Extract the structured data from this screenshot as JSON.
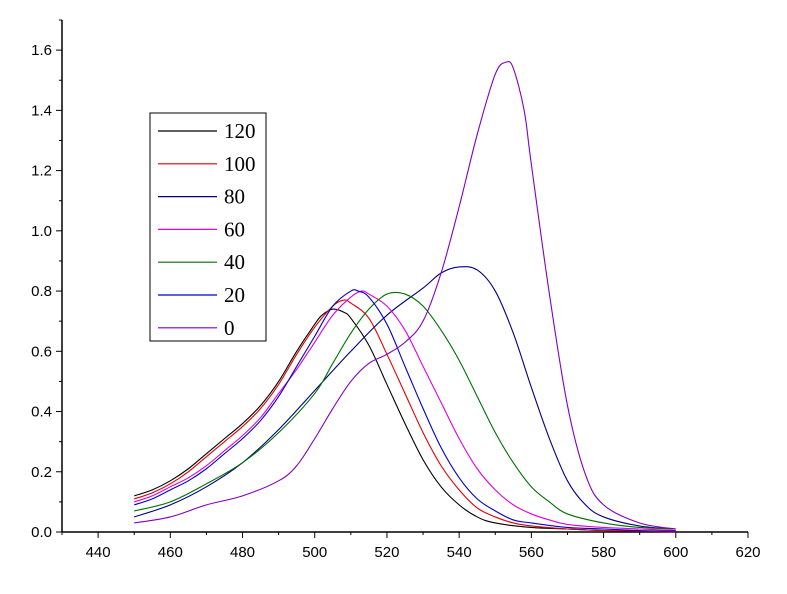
{
  "chart_data": {
    "type": "line",
    "title": "",
    "xlabel": "",
    "ylabel": "",
    "xlim": [
      430,
      620
    ],
    "ylim": [
      0,
      1.7
    ],
    "xticks": [
      440,
      460,
      480,
      500,
      520,
      540,
      560,
      580,
      600,
      620
    ],
    "xtick_labels": [
      "440",
      "460",
      "480",
      "500",
      "520",
      "540",
      "560",
      "580",
      "600",
      "620"
    ],
    "yticks": [
      0,
      0.2,
      0.4,
      0.6,
      0.8,
      1.0,
      1.2,
      1.4,
      1.6
    ],
    "ytick_labels": [
      "0.0",
      "0.2",
      "0.4",
      "0.6",
      "0.8",
      "1.0",
      "1.2",
      "1.4",
      "1.6"
    ],
    "grid": false,
    "legend_position": "upper-left",
    "series": [
      {
        "name": "120",
        "color": "#000000",
        "x": [
          450,
          455,
          460,
          465,
          470,
          475,
          480,
          485,
          490,
          495,
          500,
          502,
          505,
          508,
          510,
          515,
          520,
          525,
          530,
          535,
          540,
          545,
          550,
          560,
          570,
          580,
          590,
          600
        ],
        "y": [
          0.12,
          0.14,
          0.17,
          0.21,
          0.26,
          0.31,
          0.36,
          0.42,
          0.5,
          0.6,
          0.69,
          0.72,
          0.74,
          0.73,
          0.71,
          0.62,
          0.49,
          0.36,
          0.24,
          0.15,
          0.09,
          0.05,
          0.03,
          0.015,
          0.01,
          0.005,
          0.003,
          0.0
        ]
      },
      {
        "name": "100",
        "color": "#e00000",
        "x": [
          450,
          455,
          460,
          465,
          470,
          475,
          480,
          485,
          490,
          495,
          500,
          505,
          508,
          510,
          515,
          520,
          525,
          530,
          535,
          540,
          545,
          550,
          555,
          560,
          570,
          580,
          590,
          600
        ],
        "y": [
          0.11,
          0.13,
          0.16,
          0.2,
          0.25,
          0.3,
          0.35,
          0.41,
          0.49,
          0.59,
          0.68,
          0.75,
          0.77,
          0.76,
          0.71,
          0.59,
          0.46,
          0.33,
          0.22,
          0.14,
          0.08,
          0.05,
          0.03,
          0.02,
          0.01,
          0.005,
          0.003,
          0.0
        ]
      },
      {
        "name": "80",
        "color": "#000080",
        "x": [
          450,
          460,
          470,
          480,
          490,
          500,
          510,
          520,
          530,
          535,
          540,
          545,
          550,
          555,
          560,
          565,
          570,
          575,
          580,
          590,
          600
        ],
        "y": [
          0.05,
          0.09,
          0.15,
          0.23,
          0.34,
          0.47,
          0.6,
          0.72,
          0.81,
          0.86,
          0.88,
          0.87,
          0.8,
          0.66,
          0.48,
          0.31,
          0.17,
          0.09,
          0.05,
          0.02,
          0.01
        ]
      },
      {
        "name": "60",
        "color": "#e000e0",
        "x": [
          450,
          455,
          460,
          465,
          470,
          475,
          480,
          485,
          490,
          495,
          500,
          505,
          510,
          513,
          515,
          520,
          525,
          530,
          535,
          540,
          545,
          550,
          555,
          560,
          565,
          570,
          580,
          590,
          600
        ],
        "y": [
          0.1,
          0.12,
          0.15,
          0.18,
          0.22,
          0.27,
          0.32,
          0.38,
          0.46,
          0.54,
          0.63,
          0.72,
          0.78,
          0.8,
          0.79,
          0.75,
          0.67,
          0.55,
          0.43,
          0.31,
          0.21,
          0.14,
          0.09,
          0.06,
          0.04,
          0.025,
          0.015,
          0.01,
          0.005
        ]
      },
      {
        "name": "40",
        "color": "#007000",
        "x": [
          450,
          460,
          470,
          480,
          490,
          500,
          505,
          510,
          515,
          520,
          525,
          530,
          535,
          540,
          545,
          550,
          555,
          560,
          565,
          570,
          580,
          590,
          600
        ],
        "y": [
          0.07,
          0.1,
          0.16,
          0.23,
          0.33,
          0.46,
          0.56,
          0.66,
          0.74,
          0.79,
          0.79,
          0.75,
          0.67,
          0.57,
          0.45,
          0.33,
          0.23,
          0.15,
          0.1,
          0.06,
          0.03,
          0.015,
          0.01
        ]
      },
      {
        "name": "20",
        "color": "#0000d0",
        "x": [
          450,
          455,
          460,
          465,
          470,
          475,
          480,
          485,
          490,
          495,
          500,
          505,
          510,
          512,
          515,
          520,
          525,
          530,
          535,
          540,
          545,
          550,
          555,
          560,
          570,
          580,
          590,
          600
        ],
        "y": [
          0.09,
          0.11,
          0.14,
          0.17,
          0.21,
          0.26,
          0.31,
          0.37,
          0.45,
          0.55,
          0.65,
          0.75,
          0.8,
          0.8,
          0.78,
          0.69,
          0.55,
          0.41,
          0.28,
          0.18,
          0.11,
          0.07,
          0.04,
          0.03,
          0.015,
          0.01,
          0.005,
          0.003
        ]
      },
      {
        "name": "0",
        "color": "#8000c0",
        "x": [
          450,
          460,
          470,
          480,
          490,
          495,
          500,
          505,
          510,
          515,
          520,
          525,
          530,
          535,
          540,
          545,
          550,
          553,
          555,
          558,
          560,
          565,
          570,
          575,
          580,
          590,
          600
        ],
        "y": [
          0.03,
          0.05,
          0.09,
          0.12,
          0.17,
          0.22,
          0.31,
          0.41,
          0.5,
          0.56,
          0.59,
          0.63,
          0.7,
          0.86,
          1.08,
          1.32,
          1.52,
          1.56,
          1.54,
          1.4,
          1.22,
          0.79,
          0.42,
          0.19,
          0.09,
          0.03,
          0.01
        ]
      }
    ]
  }
}
